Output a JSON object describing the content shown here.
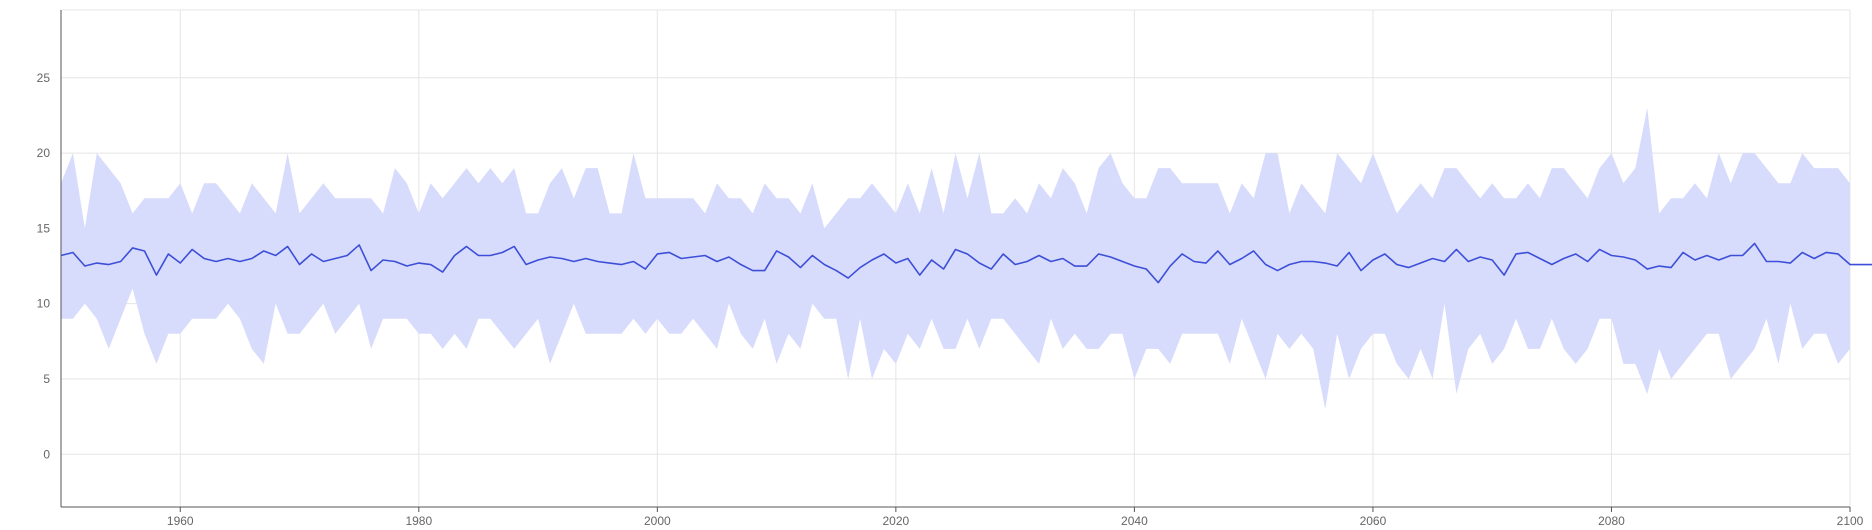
{
  "chart_data": {
    "type": "area",
    "title": "",
    "xlabel": "",
    "ylabel": "",
    "xlim": [
      1950,
      2100
    ],
    "ylim": [
      -3.5,
      29.5
    ],
    "grid": true,
    "legend": "none",
    "x_ticks": [
      1960,
      1980,
      2000,
      2020,
      2040,
      2060,
      2080,
      2100
    ],
    "y_ticks": [
      0,
      5,
      10,
      15,
      20,
      25
    ],
    "colors": {
      "band": "#d8dcfc",
      "line": "#3d4fd8",
      "grid": "#e5e5e5",
      "axis": "#555555",
      "tick_text": "#666666"
    },
    "x_start": 1950,
    "x_step": 1,
    "series": [
      {
        "role": "band_upper",
        "values": [
          18,
          20,
          15,
          20,
          19,
          18,
          16,
          17,
          17,
          17,
          18,
          16,
          18,
          18,
          17,
          16,
          18,
          17,
          16,
          20,
          16,
          17,
          18,
          17,
          17,
          17,
          17,
          16,
          19,
          18,
          16,
          18,
          17,
          18,
          19,
          18,
          19,
          18,
          19,
          16,
          16,
          18,
          19,
          17,
          19,
          19,
          16,
          16,
          20,
          17,
          17,
          17,
          17,
          17,
          16,
          18,
          17,
          17,
          16,
          18,
          17,
          17,
          16,
          18,
          15,
          16,
          17,
          17,
          18,
          17,
          16,
          18,
          16,
          19,
          16,
          20,
          17,
          20,
          16,
          16,
          17,
          16,
          18,
          17,
          19,
          18,
          16,
          19,
          20,
          18,
          17,
          17,
          19,
          19,
          18,
          18,
          18,
          18,
          16,
          18,
          17,
          20,
          20,
          16,
          18,
          17,
          16,
          20,
          19,
          18,
          20,
          18,
          16,
          17,
          18,
          17,
          19,
          19,
          18,
          17,
          18,
          17,
          17,
          18,
          17,
          19,
          19,
          18,
          17,
          19,
          20,
          18,
          19,
          23,
          16,
          17,
          17,
          18,
          17,
          20,
          18,
          20,
          20,
          19,
          18,
          18,
          20,
          19,
          19,
          19,
          18
        ]
      },
      {
        "role": "band_lower",
        "values": [
          9,
          9,
          10,
          9,
          7,
          9,
          11,
          8,
          6,
          8,
          8,
          9,
          9,
          9,
          10,
          9,
          7,
          6,
          10,
          8,
          8,
          9,
          10,
          8,
          9,
          10,
          7,
          9,
          9,
          9,
          8,
          8,
          7,
          8,
          7,
          9,
          9,
          8,
          7,
          8,
          9,
          6,
          8,
          10,
          8,
          8,
          8,
          8,
          9,
          8,
          9,
          8,
          8,
          9,
          8,
          7,
          10,
          8,
          7,
          9,
          6,
          8,
          7,
          10,
          9,
          9,
          5,
          9,
          5,
          7,
          6,
          8,
          7,
          9,
          7,
          7,
          9,
          7,
          9,
          9,
          8,
          7,
          6,
          9,
          7,
          8,
          7,
          7,
          8,
          8,
          5,
          7,
          7,
          6,
          8,
          8,
          8,
          8,
          6,
          9,
          7,
          5,
          8,
          7,
          8,
          7,
          3,
          8,
          5,
          7,
          8,
          8,
          6,
          5,
          7,
          5,
          10,
          4,
          7,
          8,
          6,
          7,
          9,
          7,
          7,
          9,
          7,
          6,
          7,
          9,
          9,
          6,
          6,
          4,
          7,
          5,
          6,
          7,
          8,
          8,
          5,
          6,
          7,
          9,
          6,
          10,
          7,
          8,
          8,
          6,
          7
        ]
      },
      {
        "role": "mean",
        "values": [
          13.2,
          13.4,
          12.5,
          12.7,
          12.6,
          12.8,
          13.7,
          13.5,
          11.9,
          13.3,
          12.7,
          13.6,
          13.0,
          12.8,
          13.0,
          12.8,
          13.0,
          13.5,
          13.2,
          13.8,
          12.6,
          13.3,
          12.8,
          13.0,
          13.2,
          13.9,
          12.2,
          12.9,
          12.8,
          12.5,
          12.7,
          12.6,
          12.1,
          13.2,
          13.8,
          13.2,
          13.2,
          13.4,
          13.8,
          12.6,
          12.9,
          13.1,
          13.0,
          12.8,
          13.0,
          12.8,
          12.7,
          12.6,
          12.8,
          12.3,
          13.3,
          13.4,
          13.0,
          13.1,
          13.2,
          12.8,
          13.1,
          12.6,
          12.2,
          12.2,
          13.5,
          13.1,
          12.4,
          13.2,
          12.6,
          12.2,
          11.7,
          12.4,
          12.9,
          13.3,
          12.7,
          13.0,
          11.9,
          12.9,
          12.3,
          13.6,
          13.3,
          12.7,
          12.3,
          13.3,
          12.6,
          12.8,
          13.2,
          12.8,
          13.0,
          12.5,
          12.5,
          13.3,
          13.1,
          12.8,
          12.5,
          12.3,
          11.4,
          12.5,
          13.3,
          12.8,
          12.7,
          13.5,
          12.6,
          13.0,
          13.5,
          12.6,
          12.2,
          12.6,
          12.8,
          12.8,
          12.7,
          12.5,
          13.4,
          12.2,
          12.9,
          13.3,
          12.6,
          12.4,
          12.7,
          13.0,
          12.8,
          13.6,
          12.8,
          13.1,
          12.9,
          11.9,
          13.3,
          13.4,
          13.0,
          12.6,
          13.0,
          13.3,
          12.8,
          13.6,
          13.2,
          13.1,
          12.9,
          12.3,
          12.5,
          12.4,
          13.4,
          12.9,
          13.2,
          12.9,
          13.2,
          13.2,
          14.0,
          12.8,
          12.8,
          12.7,
          13.4,
          13.0,
          13.4,
          13.3,
          12.6,
          12.6,
          12.6
        ]
      }
    ]
  }
}
